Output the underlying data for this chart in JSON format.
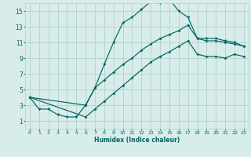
{
  "title": "",
  "xlabel": "Humidex (Indice chaleur)",
  "bg_color": "#d8ecea",
  "grid_color": "#b0d4d0",
  "line_color": "#006660",
  "xlim": [
    -0.5,
    23.5
  ],
  "ylim": [
    0,
    16
  ],
  "xticks": [
    0,
    1,
    2,
    3,
    4,
    5,
    6,
    7,
    8,
    9,
    10,
    11,
    12,
    13,
    14,
    15,
    16,
    17,
    18,
    19,
    20,
    21,
    22,
    23
  ],
  "yticks": [
    1,
    3,
    5,
    7,
    9,
    11,
    13,
    15
  ],
  "curve_main": {
    "x": [
      0,
      1,
      2,
      3,
      4,
      5,
      6,
      7,
      8,
      9,
      10,
      11,
      12,
      13,
      14,
      15,
      16,
      17,
      18,
      19,
      20,
      21,
      22,
      23
    ],
    "y": [
      4.0,
      2.5,
      2.5,
      1.8,
      1.5,
      1.5,
      3.0,
      5.2,
      8.2,
      11.0,
      13.5,
      14.2,
      15.2,
      16.2,
      16.0,
      16.5,
      15.0,
      14.2,
      11.5,
      11.5,
      11.5,
      11.2,
      11.0,
      10.5
    ]
  },
  "curve_mid": {
    "x": [
      0,
      6,
      7,
      8,
      9,
      10,
      11,
      12,
      13,
      14,
      15,
      16,
      17,
      18,
      19,
      20,
      21,
      22,
      23
    ],
    "y": [
      4.0,
      3.0,
      5.2,
      6.2,
      7.2,
      8.2,
      9.0,
      10.0,
      10.8,
      11.5,
      12.0,
      12.5,
      13.2,
      11.5,
      11.2,
      11.2,
      11.0,
      10.8,
      10.5
    ]
  },
  "curve_low": {
    "x": [
      0,
      6,
      7,
      8,
      9,
      10,
      11,
      12,
      13,
      14,
      15,
      16,
      17,
      18,
      19,
      20,
      21,
      22,
      23
    ],
    "y": [
      4.0,
      1.5,
      2.5,
      3.5,
      4.5,
      5.5,
      6.5,
      7.5,
      8.5,
      9.2,
      9.8,
      10.5,
      11.2,
      9.5,
      9.2,
      9.2,
      9.0,
      9.5,
      9.2
    ]
  }
}
